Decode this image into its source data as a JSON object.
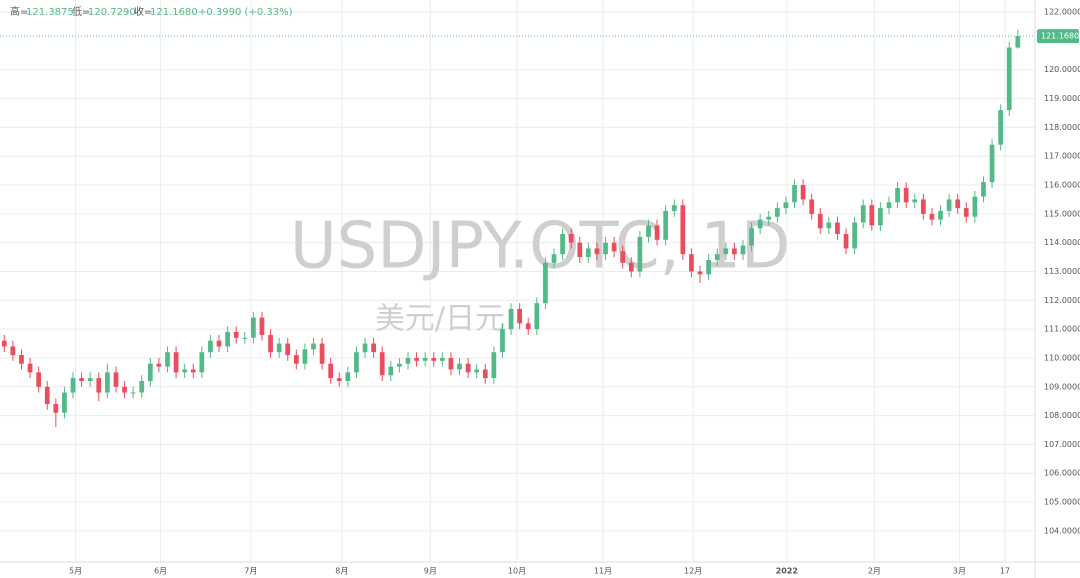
{
  "chart_data": {
    "type": "candlestick",
    "header": {
      "high_label": "高=",
      "high": "121.3875",
      "low_label": "低=",
      "low": "120.7290",
      "close_label": "收=",
      "close": "121.1680",
      "change": "+0.3990 (+0.33%)"
    },
    "watermark": "USDJPY.OTC, 1D",
    "watermark_sub": "美元/日元",
    "up_color": "#53b987",
    "down_color": "#eb4d5c",
    "grid": true,
    "xlim": [
      -0.5,
      120
    ],
    "ylim": [
      102.92,
      122.42
    ],
    "xticks": [
      {
        "value": 8.3,
        "label": "5月"
      },
      {
        "value": 18.2,
        "label": "6月"
      },
      {
        "value": 28.7,
        "label": "7月"
      },
      {
        "value": 39.3,
        "label": "8月"
      },
      {
        "value": 49.6,
        "label": "9月"
      },
      {
        "value": 59.7,
        "label": "10月"
      },
      {
        "value": 69.7,
        "label": "11月"
      },
      {
        "value": 80.2,
        "label": "12月"
      },
      {
        "value": 91.1,
        "label": "2022"
      },
      {
        "value": 101.3,
        "label": "2月"
      },
      {
        "value": 111.2,
        "label": "3月"
      },
      {
        "value": 116.5,
        "label": "17"
      }
    ],
    "yticks": [
      {
        "value": 104,
        "label": "104.0000"
      },
      {
        "value": 105,
        "label": "105.0000"
      },
      {
        "value": 106,
        "label": "106.0000"
      },
      {
        "value": 107,
        "label": "107.0000"
      },
      {
        "value": 108,
        "label": "108.0000"
      },
      {
        "value": 109,
        "label": "109.0000"
      },
      {
        "value": 110,
        "label": "110.0000"
      },
      {
        "value": 111,
        "label": "111.0000"
      },
      {
        "value": 112,
        "label": "112.0000"
      },
      {
        "value": 113,
        "label": "113.0000"
      },
      {
        "value": 114,
        "label": "114.0000"
      },
      {
        "value": 115,
        "label": "115.0000"
      },
      {
        "value": 116,
        "label": "116.0000"
      },
      {
        "value": 117,
        "label": "117.0000"
      },
      {
        "value": 118,
        "label": "118.0000"
      },
      {
        "value": 119,
        "label": "119.0000"
      },
      {
        "value": 120,
        "label": "120.0000"
      },
      {
        "value": 122,
        "label": "122.0000"
      }
    ],
    "current_price": {
      "value": 121.168,
      "label": "121.1680"
    },
    "open": [
      110.6,
      110.4,
      110.1,
      109.8,
      109.5,
      109.0,
      108.4,
      108.1,
      108.8,
      109.3,
      109.2,
      109.3,
      108.8,
      109.5,
      109.0,
      108.8,
      108.8,
      109.2,
      109.8,
      109.7,
      110.2,
      109.5,
      109.6,
      109.5,
      110.2,
      110.6,
      110.4,
      110.9,
      110.7,
      110.7,
      111.4,
      110.8,
      110.2,
      110.5,
      110.1,
      109.8,
      110.3,
      110.5,
      109.8,
      109.3,
      109.2,
      109.5,
      110.2,
      110.5,
      110.2,
      109.4,
      109.7,
      109.8,
      110.0,
      109.9,
      110.0,
      109.9,
      110.0,
      109.6,
      109.8,
      109.5,
      109.6,
      109.3,
      110.2,
      111.0,
      111.7,
      111.2,
      111.0,
      111.9,
      113.3,
      113.6,
      114.3,
      114.0,
      113.5,
      113.8,
      113.6,
      114.0,
      113.7,
      113.3,
      113.0,
      114.2,
      114.6,
      114.1,
      115.1,
      115.3,
      113.6,
      113.0,
      112.9,
      113.4,
      113.6,
      113.8,
      113.6,
      113.9,
      114.5,
      114.8,
      114.9,
      115.2,
      115.4,
      116.0,
      115.5,
      115.0,
      114.5,
      114.7,
      114.3,
      113.8,
      114.7,
      115.3,
      114.6,
      115.2,
      115.4,
      115.9,
      115.4,
      115.5,
      115.0,
      114.8,
      115.1,
      115.5,
      115.2,
      114.9,
      115.6,
      116.1,
      117.4,
      118.6,
      120.77
    ],
    "high": [
      110.8,
      110.6,
      110.3,
      110.0,
      109.7,
      109.2,
      108.6,
      109.0,
      109.5,
      109.5,
      109.5,
      109.5,
      109.8,
      109.7,
      109.2,
      109.0,
      109.4,
      110.0,
      110.0,
      110.4,
      110.4,
      109.8,
      109.8,
      110.4,
      110.8,
      110.8,
      111.1,
      111.1,
      110.9,
      111.6,
      111.6,
      111.0,
      110.7,
      110.7,
      110.3,
      110.5,
      110.7,
      110.7,
      110.0,
      109.5,
      109.7,
      110.4,
      110.7,
      110.7,
      110.4,
      109.9,
      110.0,
      110.2,
      110.2,
      110.2,
      110.2,
      110.2,
      110.2,
      110.0,
      110.0,
      109.8,
      109.8,
      110.4,
      111.2,
      111.9,
      111.9,
      111.4,
      112.1,
      113.5,
      113.8,
      114.5,
      114.5,
      114.2,
      114.0,
      114.0,
      114.2,
      114.2,
      113.9,
      113.5,
      114.4,
      114.8,
      114.8,
      115.3,
      115.5,
      115.5,
      113.8,
      113.2,
      113.6,
      113.8,
      114.0,
      114.0,
      114.1,
      114.7,
      115.0,
      115.1,
      115.4,
      115.6,
      116.2,
      116.2,
      115.7,
      115.2,
      114.9,
      114.9,
      114.5,
      114.9,
      115.5,
      115.5,
      115.4,
      115.6,
      116.1,
      116.1,
      115.7,
      115.7,
      115.2,
      115.3,
      115.7,
      115.7,
      115.4,
      115.8,
      116.3,
      117.6,
      118.8,
      120.97,
      121.3875
    ],
    "low": [
      110.2,
      109.9,
      109.6,
      109.3,
      108.8,
      108.2,
      107.6,
      107.9,
      108.6,
      109.0,
      109.0,
      108.5,
      108.6,
      108.8,
      108.6,
      108.6,
      108.6,
      109.0,
      109.5,
      109.5,
      109.3,
      109.3,
      109.3,
      109.3,
      110.0,
      110.2,
      110.2,
      110.5,
      110.5,
      110.5,
      110.6,
      110.0,
      110.0,
      109.9,
      109.6,
      109.6,
      110.1,
      109.6,
      109.1,
      109.0,
      109.0,
      109.3,
      110.0,
      110.0,
      109.2,
      109.2,
      109.5,
      109.6,
      109.7,
      109.7,
      109.7,
      109.7,
      109.4,
      109.4,
      109.3,
      109.3,
      109.1,
      109.1,
      110.0,
      110.8,
      111.0,
      110.8,
      110.8,
      111.7,
      113.1,
      113.4,
      113.8,
      113.3,
      113.3,
      113.4,
      113.4,
      113.5,
      113.1,
      112.8,
      112.8,
      114.0,
      113.9,
      113.9,
      114.9,
      113.4,
      112.8,
      112.6,
      112.7,
      113.2,
      113.4,
      113.4,
      113.4,
      113.7,
      114.3,
      114.6,
      114.7,
      115.0,
      115.2,
      115.3,
      114.8,
      114.3,
      114.3,
      114.1,
      113.6,
      113.6,
      114.5,
      114.4,
      114.4,
      115.0,
      115.2,
      115.2,
      115.2,
      114.8,
      114.6,
      114.6,
      114.9,
      115.0,
      114.7,
      114.7,
      115.4,
      115.9,
      117.2,
      118.4,
      120.729
    ],
    "close": [
      110.4,
      110.1,
      109.8,
      109.5,
      109.0,
      108.4,
      108.1,
      108.8,
      109.3,
      109.2,
      109.3,
      108.8,
      109.5,
      109.0,
      108.8,
      108.8,
      109.2,
      109.8,
      109.7,
      110.2,
      109.5,
      109.6,
      109.5,
      110.2,
      110.6,
      110.4,
      110.9,
      110.7,
      110.7,
      111.4,
      110.8,
      110.2,
      110.5,
      110.1,
      109.8,
      110.3,
      110.5,
      109.8,
      109.3,
      109.2,
      109.5,
      110.2,
      110.5,
      110.2,
      109.4,
      109.7,
      109.8,
      110.0,
      109.9,
      110.0,
      109.9,
      110.0,
      109.6,
      109.8,
      109.5,
      109.6,
      109.3,
      110.2,
      111.0,
      111.7,
      111.2,
      111.0,
      111.9,
      113.3,
      113.6,
      114.3,
      114.0,
      113.5,
      113.8,
      113.6,
      114.0,
      113.7,
      113.3,
      113.0,
      114.2,
      114.6,
      114.1,
      115.1,
      115.3,
      113.6,
      113.0,
      112.9,
      113.4,
      113.6,
      113.8,
      113.6,
      113.9,
      114.5,
      114.8,
      114.9,
      115.2,
      115.4,
      116.0,
      115.5,
      115.0,
      114.5,
      114.7,
      114.3,
      113.8,
      114.7,
      115.3,
      114.6,
      115.2,
      115.4,
      115.9,
      115.4,
      115.5,
      115.0,
      114.8,
      115.1,
      115.5,
      115.2,
      114.9,
      115.6,
      116.1,
      117.4,
      118.6,
      120.77,
      121.168
    ]
  }
}
